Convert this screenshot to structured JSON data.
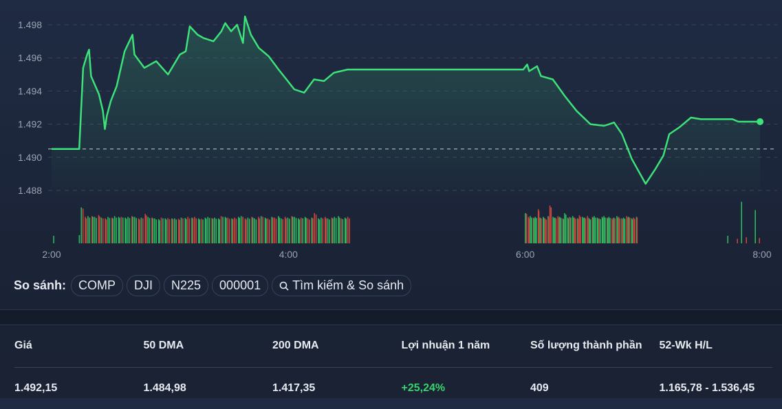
{
  "chart_data": {
    "type": "area",
    "y_ticks": [
      {
        "value": 1498,
        "label": "1.498"
      },
      {
        "value": 1496,
        "label": "1.496"
      },
      {
        "value": 1494,
        "label": "1.494"
      },
      {
        "value": 1492,
        "label": "1.492"
      },
      {
        "value": 1490,
        "label": "1.490"
      },
      {
        "value": 1488,
        "label": "1.488"
      }
    ],
    "x_ticks": [
      "2:00",
      "4:00",
      "6:00",
      "8:00"
    ],
    "ylim": [
      1487.5,
      1499
    ],
    "xlim": [
      "2:00",
      "8:00"
    ],
    "reference_line": 1490.5,
    "grid": true,
    "line_color": "#3ee27a",
    "up_color": "#2fb85f",
    "down_color": "#c8473d",
    "series": [
      [
        "2:00",
        1490.5
      ],
      [
        "2:14",
        1490.5
      ],
      [
        "2:16",
        1495.4
      ],
      [
        "2:18",
        1496.2
      ],
      [
        "2:19",
        1496.5
      ],
      [
        "2:20",
        1494.9
      ],
      [
        "2:24",
        1493.8
      ],
      [
        "2:26",
        1492.8
      ],
      [
        "2:27",
        1491.7
      ],
      [
        "2:28",
        1492.5
      ],
      [
        "2:30",
        1493.4
      ],
      [
        "2:33",
        1494.3
      ],
      [
        "2:37",
        1496.4
      ],
      [
        "2:41",
        1497.4
      ],
      [
        "2:42",
        1496.2
      ],
      [
        "2:47",
        1495.4
      ],
      [
        "2:53",
        1495.8
      ],
      [
        "2:59",
        1495.0
      ],
      [
        "3:05",
        1496.2
      ],
      [
        "3:08",
        1496.4
      ],
      [
        "3:10",
        1497.9
      ],
      [
        "3:14",
        1497.4
      ],
      [
        "3:17",
        1497.2
      ],
      [
        "3:22",
        1497.0
      ],
      [
        "3:26",
        1497.6
      ],
      [
        "3:28",
        1498.1
      ],
      [
        "3:31",
        1497.6
      ],
      [
        "3:34",
        1498.0
      ],
      [
        "3:37",
        1496.9
      ],
      [
        "3:38",
        1498.5
      ],
      [
        "3:41",
        1497.4
      ],
      [
        "3:45",
        1496.6
      ],
      [
        "3:50",
        1496.1
      ],
      [
        "3:55",
        1495.3
      ],
      [
        "3:59",
        1494.7
      ],
      [
        "4:03",
        1494.1
      ],
      [
        "4:08",
        1493.9
      ],
      [
        "4:13",
        1494.7
      ],
      [
        "4:18",
        1494.6
      ],
      [
        "4:23",
        1495.1
      ],
      [
        "4:30",
        1495.3
      ],
      [
        "5:59",
        1495.3
      ],
      [
        "6:01",
        1495.6
      ],
      [
        "6:02",
        1495.2
      ],
      [
        "6:06",
        1495.5
      ],
      [
        "6:08",
        1494.9
      ],
      [
        "6:14",
        1494.7
      ],
      [
        "6:20",
        1493.7
      ],
      [
        "6:26",
        1492.8
      ],
      [
        "6:33",
        1492.0
      ],
      [
        "6:40",
        1491.9
      ],
      [
        "6:45",
        1492.1
      ],
      [
        "6:49",
        1491.4
      ],
      [
        "6:54",
        1489.9
      ],
      [
        "7:01",
        1488.4
      ],
      [
        "7:06",
        1489.3
      ],
      [
        "7:10",
        1490.1
      ],
      [
        "7:13",
        1491.4
      ],
      [
        "7:18",
        1491.8
      ],
      [
        "7:24",
        1492.4
      ],
      [
        "7:29",
        1492.3
      ],
      [
        "7:45",
        1492.3
      ],
      [
        "7:48",
        1492.15
      ],
      [
        "7:59",
        1492.15
      ]
    ],
    "volume": {
      "segments": [
        {
          "start": "2:15",
          "end": "4:30",
          "values": [
            95,
            -70,
            72,
            -72,
            70,
            -75,
            68,
            -66,
            70,
            -68,
            72,
            70,
            -70,
            68,
            70,
            -72,
            70,
            -66,
            68,
            -78,
            70,
            -68,
            66,
            64,
            -68,
            66,
            -67,
            66,
            66,
            -65,
            68,
            67,
            -70,
            68,
            -70,
            66,
            -65,
            68,
            70,
            -67,
            68,
            66,
            -72,
            70,
            -68,
            66,
            -68,
            70,
            72,
            -66,
            68,
            -70,
            66,
            -70,
            72,
            68,
            -66,
            70,
            -68,
            72,
            66,
            -70,
            68,
            -72,
            70,
            66,
            -68,
            70,
            -66,
            68,
            -80,
            66,
            68,
            -70,
            66,
            -68,
            70,
            72,
            -66,
            68,
            -70
          ]
        },
        {
          "start": "6:00",
          "end": "6:56",
          "values": [
            80,
            -70,
            72,
            -68,
            70,
            -90,
            68,
            70,
            -66,
            72,
            -100,
            70,
            68,
            -72,
            70,
            -66,
            80,
            68,
            -70,
            72,
            -68,
            66,
            -74,
            70,
            68,
            -72,
            66,
            -70,
            72,
            68,
            -66,
            70,
            72,
            -68,
            70,
            -66,
            68,
            72,
            -70,
            66,
            68,
            -72,
            70,
            66,
            -68,
            70
          ]
        }
      ],
      "bars": [
        [
          "7:05",
          20
        ],
        [
          "7:09",
          -12
        ],
        [
          "7:11",
          110
        ],
        [
          "7:13",
          -16
        ],
        [
          "7:17",
          88
        ],
        [
          "7:19",
          -14
        ],
        [
          "1:00",
          0
        ]
      ]
    }
  },
  "compare": {
    "label": "So sánh:",
    "chips": [
      "COMP",
      "DJI",
      "N225",
      "000001"
    ],
    "search_label": "Tìm kiếm & So sánh",
    "search_icon": "search-icon"
  },
  "stats": {
    "headers": [
      "Giá",
      "50 DMA",
      "200 DMA",
      "Lợi nhuận 1 năm",
      "Số lượng thành phần",
      "52-Wk H/L"
    ],
    "values": [
      "1.492,15",
      "1.484,98",
      "1.417,35",
      "+25,24%",
      "409",
      "1.165,78 - 1.536,45"
    ]
  }
}
